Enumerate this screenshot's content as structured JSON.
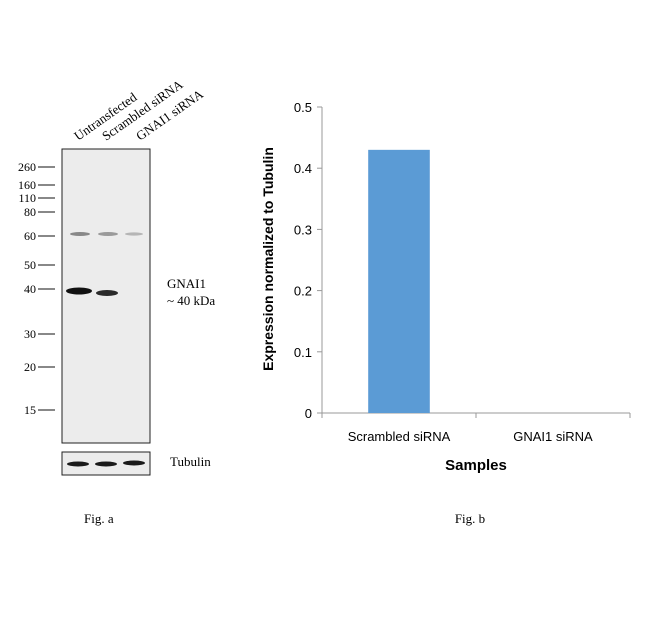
{
  "figure_a": {
    "caption": "Fig. a",
    "lanes": [
      "Untransfected",
      "Scrambled siRNA",
      "GNAI1 siRNA"
    ],
    "mw_markers": [
      "260",
      "160",
      "110",
      "80",
      "60",
      "50",
      "40",
      "30",
      "20",
      "15"
    ],
    "band_label_line1": "GNAI1",
    "band_label_line2": "~ 40 kDa",
    "loading_control_label": "Tubulin"
  },
  "figure_b": {
    "caption": "Fig. b"
  },
  "chart_data": {
    "type": "bar",
    "categories": [
      "Scrambled siRNA",
      "GNAI1 siRNA"
    ],
    "values": [
      0.43,
      0
    ],
    "xlabel": "Samples",
    "ylabel": "Expression  normalized to Tubulin",
    "ylim": [
      0,
      0.5
    ],
    "yticks": [
      "0",
      "0.1",
      "0.2",
      "0.3",
      "0.4",
      "0.5"
    ],
    "grid": false,
    "bar_color": "#5b9bd5"
  }
}
